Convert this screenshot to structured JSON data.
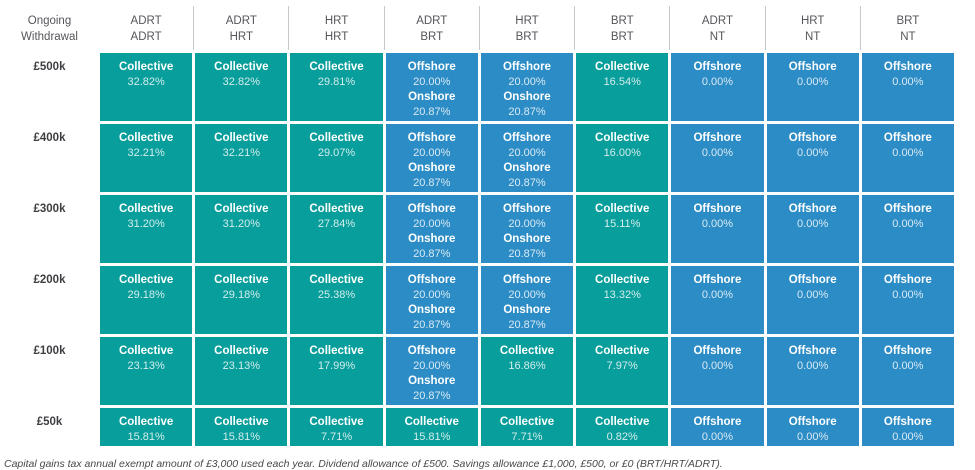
{
  "colors": {
    "teal": "#089e9b",
    "blue": "#2c8cc5",
    "header_text": "#55565a",
    "divider": "#c7c8ca"
  },
  "chart_data": {
    "type": "table",
    "corner": {
      "line1": "Ongoing",
      "line2": "Withdrawal"
    },
    "columns": [
      {
        "line1": "ADRT",
        "line2": "ADRT"
      },
      {
        "line1": "ADRT",
        "line2": "HRT"
      },
      {
        "line1": "HRT",
        "line2": "HRT"
      },
      {
        "line1": "ADRT",
        "line2": "BRT"
      },
      {
        "line1": "HRT",
        "line2": "BRT"
      },
      {
        "line1": "BRT",
        "line2": "BRT"
      },
      {
        "line1": "ADRT",
        "line2": "NT"
      },
      {
        "line1": "HRT",
        "line2": "NT"
      },
      {
        "line1": "BRT",
        "line2": "NT"
      }
    ],
    "rows": [
      {
        "label": "£500k",
        "cells": [
          {
            "style": "teal",
            "entries": [
              {
                "name": "Collective",
                "value": "32.82%"
              }
            ]
          },
          {
            "style": "teal",
            "entries": [
              {
                "name": "Collective",
                "value": "32.82%"
              }
            ]
          },
          {
            "style": "teal",
            "entries": [
              {
                "name": "Collective",
                "value": "29.81%"
              }
            ]
          },
          {
            "style": "blue",
            "entries": [
              {
                "name": "Offshore",
                "value": "20.00%"
              },
              {
                "name": "Onshore",
                "value": "20.87%"
              }
            ]
          },
          {
            "style": "blue",
            "entries": [
              {
                "name": "Offshore",
                "value": "20.00%"
              },
              {
                "name": "Onshore",
                "value": "20.87%"
              }
            ]
          },
          {
            "style": "teal",
            "entries": [
              {
                "name": "Collective",
                "value": "16.54%"
              }
            ]
          },
          {
            "style": "blue",
            "entries": [
              {
                "name": "Offshore",
                "value": "0.00%"
              }
            ]
          },
          {
            "style": "blue",
            "entries": [
              {
                "name": "Offshore",
                "value": "0.00%"
              }
            ]
          },
          {
            "style": "blue",
            "entries": [
              {
                "name": "Offshore",
                "value": "0.00%"
              }
            ]
          }
        ]
      },
      {
        "label": "£400k",
        "cells": [
          {
            "style": "teal",
            "entries": [
              {
                "name": "Collective",
                "value": "32.21%"
              }
            ]
          },
          {
            "style": "teal",
            "entries": [
              {
                "name": "Collective",
                "value": "32.21%"
              }
            ]
          },
          {
            "style": "teal",
            "entries": [
              {
                "name": "Collective",
                "value": "29.07%"
              }
            ]
          },
          {
            "style": "blue",
            "entries": [
              {
                "name": "Offshore",
                "value": "20.00%"
              },
              {
                "name": "Onshore",
                "value": "20.87%"
              }
            ]
          },
          {
            "style": "blue",
            "entries": [
              {
                "name": "Offshore",
                "value": "20.00%"
              },
              {
                "name": "Onshore",
                "value": "20.87%"
              }
            ]
          },
          {
            "style": "teal",
            "entries": [
              {
                "name": "Collective",
                "value": "16.00%"
              }
            ]
          },
          {
            "style": "blue",
            "entries": [
              {
                "name": "Offshore",
                "value": "0.00%"
              }
            ]
          },
          {
            "style": "blue",
            "entries": [
              {
                "name": "Offshore",
                "value": "0.00%"
              }
            ]
          },
          {
            "style": "blue",
            "entries": [
              {
                "name": "Offshore",
                "value": "0.00%"
              }
            ]
          }
        ]
      },
      {
        "label": "£300k",
        "cells": [
          {
            "style": "teal",
            "entries": [
              {
                "name": "Collective",
                "value": "31.20%"
              }
            ]
          },
          {
            "style": "teal",
            "entries": [
              {
                "name": "Collective",
                "value": "31.20%"
              }
            ]
          },
          {
            "style": "teal",
            "entries": [
              {
                "name": "Collective",
                "value": "27.84%"
              }
            ]
          },
          {
            "style": "blue",
            "entries": [
              {
                "name": "Offshore",
                "value": "20.00%"
              },
              {
                "name": "Onshore",
                "value": "20.87%"
              }
            ]
          },
          {
            "style": "blue",
            "entries": [
              {
                "name": "Offshore",
                "value": "20.00%"
              },
              {
                "name": "Onshore",
                "value": "20.87%"
              }
            ]
          },
          {
            "style": "teal",
            "entries": [
              {
                "name": "Collective",
                "value": "15.11%"
              }
            ]
          },
          {
            "style": "blue",
            "entries": [
              {
                "name": "Offshore",
                "value": "0.00%"
              }
            ]
          },
          {
            "style": "blue",
            "entries": [
              {
                "name": "Offshore",
                "value": "0.00%"
              }
            ]
          },
          {
            "style": "blue",
            "entries": [
              {
                "name": "Offshore",
                "value": "0.00%"
              }
            ]
          }
        ]
      },
      {
        "label": "£200k",
        "cells": [
          {
            "style": "teal",
            "entries": [
              {
                "name": "Collective",
                "value": "29.18%"
              }
            ]
          },
          {
            "style": "teal",
            "entries": [
              {
                "name": "Collective",
                "value": "29.18%"
              }
            ]
          },
          {
            "style": "teal",
            "entries": [
              {
                "name": "Collective",
                "value": "25.38%"
              }
            ]
          },
          {
            "style": "blue",
            "entries": [
              {
                "name": "Offshore",
                "value": "20.00%"
              },
              {
                "name": "Onshore",
                "value": "20.87%"
              }
            ]
          },
          {
            "style": "blue",
            "entries": [
              {
                "name": "Offshore",
                "value": "20.00%"
              },
              {
                "name": "Onshore",
                "value": "20.87%"
              }
            ]
          },
          {
            "style": "teal",
            "entries": [
              {
                "name": "Collective",
                "value": "13.32%"
              }
            ]
          },
          {
            "style": "blue",
            "entries": [
              {
                "name": "Offshore",
                "value": "0.00%"
              }
            ]
          },
          {
            "style": "blue",
            "entries": [
              {
                "name": "Offshore",
                "value": "0.00%"
              }
            ]
          },
          {
            "style": "blue",
            "entries": [
              {
                "name": "Offshore",
                "value": "0.00%"
              }
            ]
          }
        ]
      },
      {
        "label": "£100k",
        "cells": [
          {
            "style": "teal",
            "entries": [
              {
                "name": "Collective",
                "value": "23.13%"
              }
            ]
          },
          {
            "style": "teal",
            "entries": [
              {
                "name": "Collective",
                "value": "23.13%"
              }
            ]
          },
          {
            "style": "teal",
            "entries": [
              {
                "name": "Collective",
                "value": "17.99%"
              }
            ]
          },
          {
            "style": "blue",
            "entries": [
              {
                "name": "Offshore",
                "value": "20.00%"
              },
              {
                "name": "Onshore",
                "value": "20.87%"
              }
            ]
          },
          {
            "style": "teal",
            "entries": [
              {
                "name": "Collective",
                "value": "16.86%"
              }
            ]
          },
          {
            "style": "teal",
            "entries": [
              {
                "name": "Collective",
                "value": "7.97%"
              }
            ]
          },
          {
            "style": "blue",
            "entries": [
              {
                "name": "Offshore",
                "value": "0.00%"
              }
            ]
          },
          {
            "style": "blue",
            "entries": [
              {
                "name": "Offshore",
                "value": "0.00%"
              }
            ]
          },
          {
            "style": "blue",
            "entries": [
              {
                "name": "Offshore",
                "value": "0.00%"
              }
            ]
          }
        ]
      },
      {
        "label": "£50k",
        "cells": [
          {
            "style": "teal",
            "entries": [
              {
                "name": "Collective",
                "value": "15.81%"
              }
            ]
          },
          {
            "style": "teal",
            "entries": [
              {
                "name": "Collective",
                "value": "15.81%"
              }
            ]
          },
          {
            "style": "teal",
            "entries": [
              {
                "name": "Collective",
                "value": "7.71%"
              }
            ]
          },
          {
            "style": "teal",
            "entries": [
              {
                "name": "Collective",
                "value": "15.81%"
              }
            ]
          },
          {
            "style": "teal",
            "entries": [
              {
                "name": "Collective",
                "value": "7.71%"
              }
            ]
          },
          {
            "style": "teal",
            "entries": [
              {
                "name": "Collective",
                "value": "0.82%"
              }
            ]
          },
          {
            "style": "blue",
            "entries": [
              {
                "name": "Offshore",
                "value": "0.00%"
              }
            ]
          },
          {
            "style": "blue",
            "entries": [
              {
                "name": "Offshore",
                "value": "0.00%"
              }
            ]
          },
          {
            "style": "blue",
            "entries": [
              {
                "name": "Offshore",
                "value": "0.00%"
              }
            ]
          }
        ]
      }
    ],
    "footnote": "Capital gains tax annual exempt amount of £3,000 used each year. Dividend allowance of £500.  Savings allowance £1,000, £500, or £0 (BRT/HRT/ADRT)."
  }
}
